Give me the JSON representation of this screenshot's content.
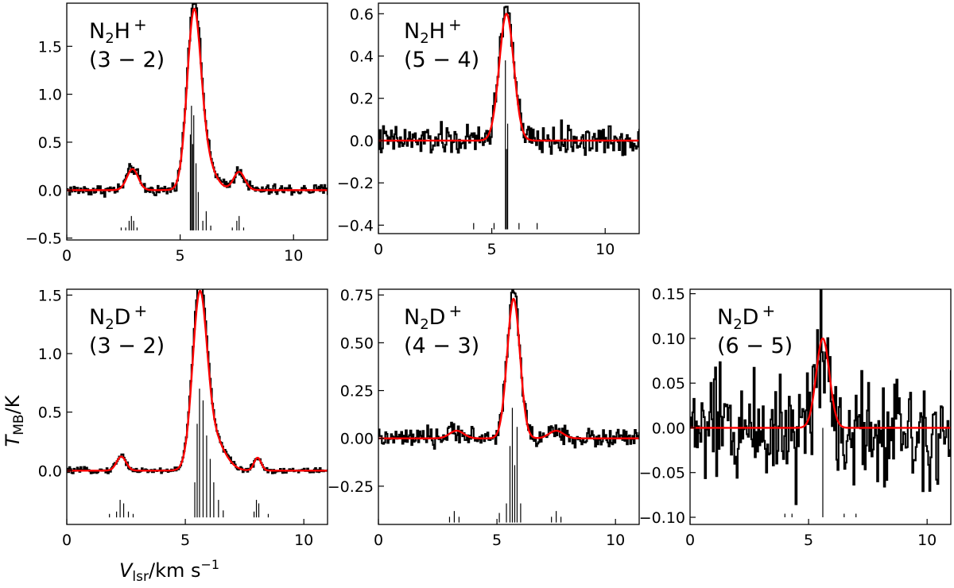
{
  "colors": {
    "observed": "#000000",
    "fit": "#ff0000",
    "components": "#000000"
  },
  "figure": {
    "xlabel": {
      "main": "V",
      "sub": "lsr",
      "unit": "/km s",
      "exp": "−1"
    },
    "ylabel": {
      "main": "T",
      "sub": "MB",
      "unit": "/K"
    }
  },
  "chart_data": [
    {
      "type": "line",
      "title": "",
      "molecule": {
        "a": "N",
        "sub": "2",
        "b": "H",
        "sup": "+"
      },
      "transition": "(3 − 2)",
      "xlim": [
        0,
        11.5
      ],
      "ylim": [
        -0.52,
        1.95
      ],
      "xticks": [
        0,
        5,
        10
      ],
      "xtick_labels": [
        "0",
        "5",
        "10"
      ],
      "yticks": [
        -0.5,
        0.0,
        0.5,
        1.0,
        1.5
      ],
      "ytick_labels": [
        "−0.5",
        "0.0",
        "0.5",
        "1.0",
        "1.5"
      ],
      "noise": 0.03,
      "lines": [
        {
          "v": 2.9,
          "amp": 0.22,
          "w": 0.25
        },
        {
          "v": 5.6,
          "amp": 1.65,
          "w": 0.3
        },
        {
          "v": 6.0,
          "amp": 0.35,
          "w": 0.45
        },
        {
          "v": 7.6,
          "amp": 0.19,
          "w": 0.25
        }
      ],
      "components": {
        "baseline": -0.42,
        "v": [
          2.4,
          2.6,
          2.75,
          2.85,
          2.95,
          3.1,
          5.45,
          5.5,
          5.55,
          5.6,
          5.7,
          5.8,
          6.0,
          6.15,
          6.35,
          7.3,
          7.5,
          7.6,
          7.8
        ],
        "h": [
          0.03,
          0.03,
          0.1,
          0.15,
          0.1,
          0.03,
          1.0,
          1.3,
          0.9,
          1.2,
          0.7,
          0.4,
          0.1,
          0.2,
          0.05,
          0.03,
          0.1,
          0.15,
          0.03
        ]
      },
      "series": [
        {
          "name": ""
        }
      ]
    },
    {
      "type": "line",
      "title": "",
      "molecule": {
        "a": "N",
        "sub": "2",
        "b": "H",
        "sup": "+"
      },
      "transition": "(5 − 4)",
      "xlim": [
        0,
        11.5
      ],
      "ylim": [
        -0.44,
        0.65
      ],
      "xticks": [
        0,
        5,
        10
      ],
      "xtick_labels": [
        "0",
        "5",
        "10"
      ],
      "yticks": [
        -0.4,
        -0.2,
        0.0,
        0.2,
        0.4,
        0.6
      ],
      "ytick_labels": [
        "−0.4",
        "−0.2",
        "0.0",
        "0.2",
        "0.4",
        "0.6"
      ],
      "noise": 0.035,
      "lines": [
        {
          "v": 5.65,
          "amp": 0.6,
          "w": 0.32
        }
      ],
      "components": {
        "baseline": -0.42,
        "v": [
          4.2,
          5.1,
          5.6,
          5.65,
          5.7,
          6.2,
          7.0
        ],
        "h": [
          0.03,
          0.03,
          0.8,
          0.38,
          0.5,
          0.03,
          0.03
        ]
      },
      "series": [
        {
          "name": ""
        }
      ]
    },
    {
      "type": "line",
      "title": "",
      "molecule": {
        "a": "N",
        "sub": "2",
        "b": "D",
        "sup": "+"
      },
      "transition": "(3 − 2)",
      "xlim": [
        0,
        11.0
      ],
      "ylim": [
        -0.46,
        1.55
      ],
      "xticks": [
        0,
        5,
        10
      ],
      "xtick_labels": [
        "0",
        "5",
        "10"
      ],
      "yticks": [
        0.0,
        0.5,
        1.0,
        1.5
      ],
      "ytick_labels": [
        "0.0",
        "0.5",
        "1.0",
        "1.5"
      ],
      "noise": 0.012,
      "lines": [
        {
          "v": 2.3,
          "amp": 0.12,
          "w": 0.2
        },
        {
          "v": 5.6,
          "amp": 1.35,
          "w": 0.3
        },
        {
          "v": 6.1,
          "amp": 0.3,
          "w": 0.5
        },
        {
          "v": 8.05,
          "amp": 0.11,
          "w": 0.15
        }
      ],
      "components": {
        "baseline": -0.4,
        "v": [
          1.8,
          2.1,
          2.25,
          2.4,
          2.6,
          2.8,
          5.4,
          5.5,
          5.6,
          5.75,
          5.9,
          6.05,
          6.2,
          6.4,
          6.6,
          7.9,
          8.0,
          8.1,
          8.5
        ],
        "h": [
          0.03,
          0.05,
          0.15,
          0.12,
          0.05,
          0.03,
          0.3,
          0.8,
          1.1,
          1.0,
          0.7,
          0.5,
          0.3,
          0.15,
          0.06,
          0.05,
          0.15,
          0.12,
          0.03
        ]
      },
      "series": [
        {
          "name": ""
        }
      ]
    },
    {
      "type": "line",
      "title": "",
      "molecule": {
        "a": "N",
        "sub": "2",
        "b": "D",
        "sup": "+"
      },
      "transition": "(4 − 3)",
      "xlim": [
        0,
        11.0
      ],
      "ylim": [
        -0.45,
        0.78
      ],
      "xticks": [
        0,
        5,
        10
      ],
      "xtick_labels": [
        "0",
        "5",
        "10"
      ],
      "yticks": [
        -0.25,
        0.0,
        0.25,
        0.5,
        0.75
      ],
      "ytick_labels": [
        "−0.25",
        "0.00",
        "0.25",
        "0.50",
        "0.75"
      ],
      "noise": 0.025,
      "lines": [
        {
          "v": 3.3,
          "amp": 0.04,
          "w": 0.3
        },
        {
          "v": 5.7,
          "amp": 0.73,
          "w": 0.27
        },
        {
          "v": 7.5,
          "amp": 0.04,
          "w": 0.3
        }
      ],
      "components": {
        "baseline": -0.44,
        "v": [
          3.0,
          3.2,
          3.4,
          5.1,
          5.4,
          5.55,
          5.65,
          5.75,
          5.85,
          6.0,
          7.3,
          7.5,
          7.7
        ],
        "h": [
          0.03,
          0.06,
          0.03,
          0.05,
          0.1,
          0.4,
          0.6,
          0.3,
          0.5,
          0.1,
          0.03,
          0.06,
          0.03
        ]
      },
      "series": [
        {
          "name": ""
        }
      ]
    },
    {
      "type": "line",
      "title": "",
      "molecule": {
        "a": "N",
        "sub": "2",
        "b": "D",
        "sup": "+"
      },
      "transition": "(6 − 5)",
      "xlim": [
        0,
        11.0
      ],
      "ylim": [
        -0.108,
        0.155
      ],
      "xticks": [
        0,
        5,
        10
      ],
      "xtick_labels": [
        "0",
        "5",
        "10"
      ],
      "yticks": [
        -0.1,
        -0.05,
        0.0,
        0.05,
        0.1,
        0.15
      ],
      "ytick_labels": [
        "−0.10",
        "−0.05",
        "0.00",
        "0.05",
        "0.10",
        "0.15"
      ],
      "noise": 0.032,
      "lines": [
        {
          "v": 5.6,
          "amp": 0.1,
          "w": 0.28
        }
      ],
      "components": {
        "baseline": -0.1,
        "v": [
          4.0,
          4.3,
          5.6,
          6.5,
          7.0
        ],
        "h": [
          0.004,
          0.004,
          0.1,
          0.004,
          0.004
        ]
      },
      "series": [
        {
          "name": ""
        }
      ]
    }
  ]
}
